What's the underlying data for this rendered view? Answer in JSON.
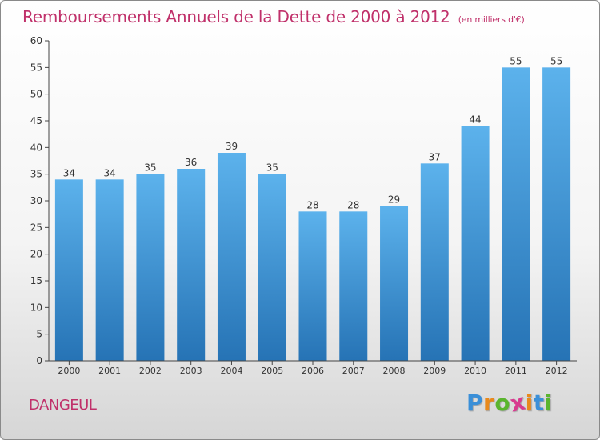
{
  "chart_data": {
    "type": "bar",
    "title": "Remboursements Annuels de la Dette de 2000 à 2012",
    "subtitle": "(en milliers d'€)",
    "categories": [
      "2000",
      "2001",
      "2002",
      "2003",
      "2004",
      "2005",
      "2006",
      "2007",
      "2008",
      "2009",
      "2010",
      "2011",
      "2012"
    ],
    "values": [
      34,
      34,
      35,
      36,
      39,
      35,
      28,
      28,
      29,
      37,
      44,
      55,
      55
    ],
    "ylim": [
      0,
      60
    ],
    "yticks": [
      0,
      5,
      10,
      15,
      20,
      25,
      30,
      35,
      40,
      45,
      50,
      55,
      60
    ],
    "xlabel": "",
    "ylabel": "",
    "grid": false
  },
  "commune": "DANGEUL",
  "logo": {
    "letters": [
      "P",
      "r",
      "o",
      "x",
      "i",
      "t",
      "i"
    ],
    "colors": [
      "#3a8fd8",
      "#e8891c",
      "#5ab52e",
      "#d83a8f",
      "#e8891c",
      "#3a8fd8",
      "#5ab52e"
    ]
  },
  "colors": {
    "title": "#c0306a",
    "bar_light": "#5aafe8",
    "bar_dark": "#2a78b8",
    "axis": "#444444"
  }
}
